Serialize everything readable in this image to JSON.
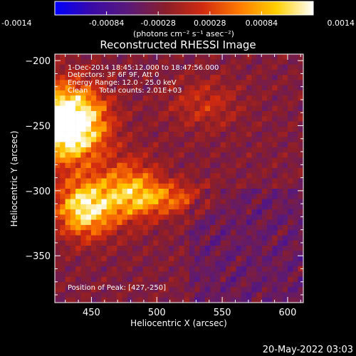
{
  "chart_data": {
    "type": "heatmap",
    "title": "Reconstructed RHESSI Image",
    "xlabel": "Heliocentric X (arcsec)",
    "ylabel": "Heliocentric Y (arcsec)",
    "xlim": [
      422,
      612
    ],
    "ylim": [
      -386,
      -195
    ],
    "x_ticks": [
      450,
      500,
      550,
      600
    ],
    "y_ticks": [
      -200,
      -250,
      -300,
      -350
    ],
    "colorbar": {
      "range": [
        -0.0014,
        0.0014
      ],
      "ticks": [
        "-0.0014",
        "-0.00084",
        "-0.00028",
        "0.00028",
        "0.00084",
        "0.0014"
      ],
      "unit_label": "(photons cm⁻² s⁻¹ asec⁻²)",
      "stops": [
        "#0000ff",
        "#3a0aa8",
        "#5a1a78",
        "#8a1e2a",
        "#d02a10",
        "#ff7a00",
        "#ffd000",
        "#ffffff"
      ]
    },
    "annotations": {
      "time": "1-Dec-2014 18:45:12.000 to 18:47:56.000",
      "detectors": "Detectors: 3F 6F 9F, Att 0",
      "energy": "Energy Range: 12.0 - 25.0 keV",
      "method": "Clean     Total counts: 2.01E+03",
      "peak": "Position of Peak: [427,-250]"
    },
    "timestamp": "20-May-2022 03:03"
  }
}
